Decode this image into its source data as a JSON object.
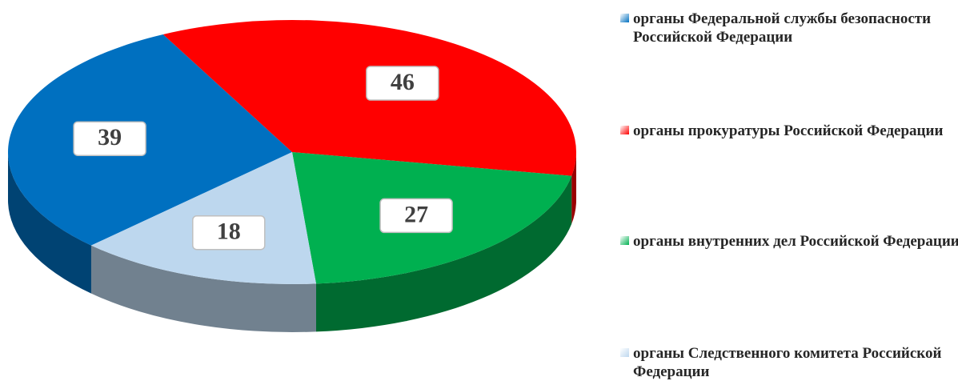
{
  "chart_data": {
    "type": "pie",
    "categories": [
      "органы Федеральной службы безопасности Российской Федерации",
      "органы прокуратуры Российской Федерации",
      "органы внутренних дел Российской Федерации",
      "органы Следственного комитета Российской Федерации"
    ],
    "values": [
      39,
      46,
      27,
      18
    ],
    "colors": [
      "#0070c0",
      "#ff0000",
      "#00b050",
      "#bdd7ee"
    ],
    "legend": "right"
  }
}
